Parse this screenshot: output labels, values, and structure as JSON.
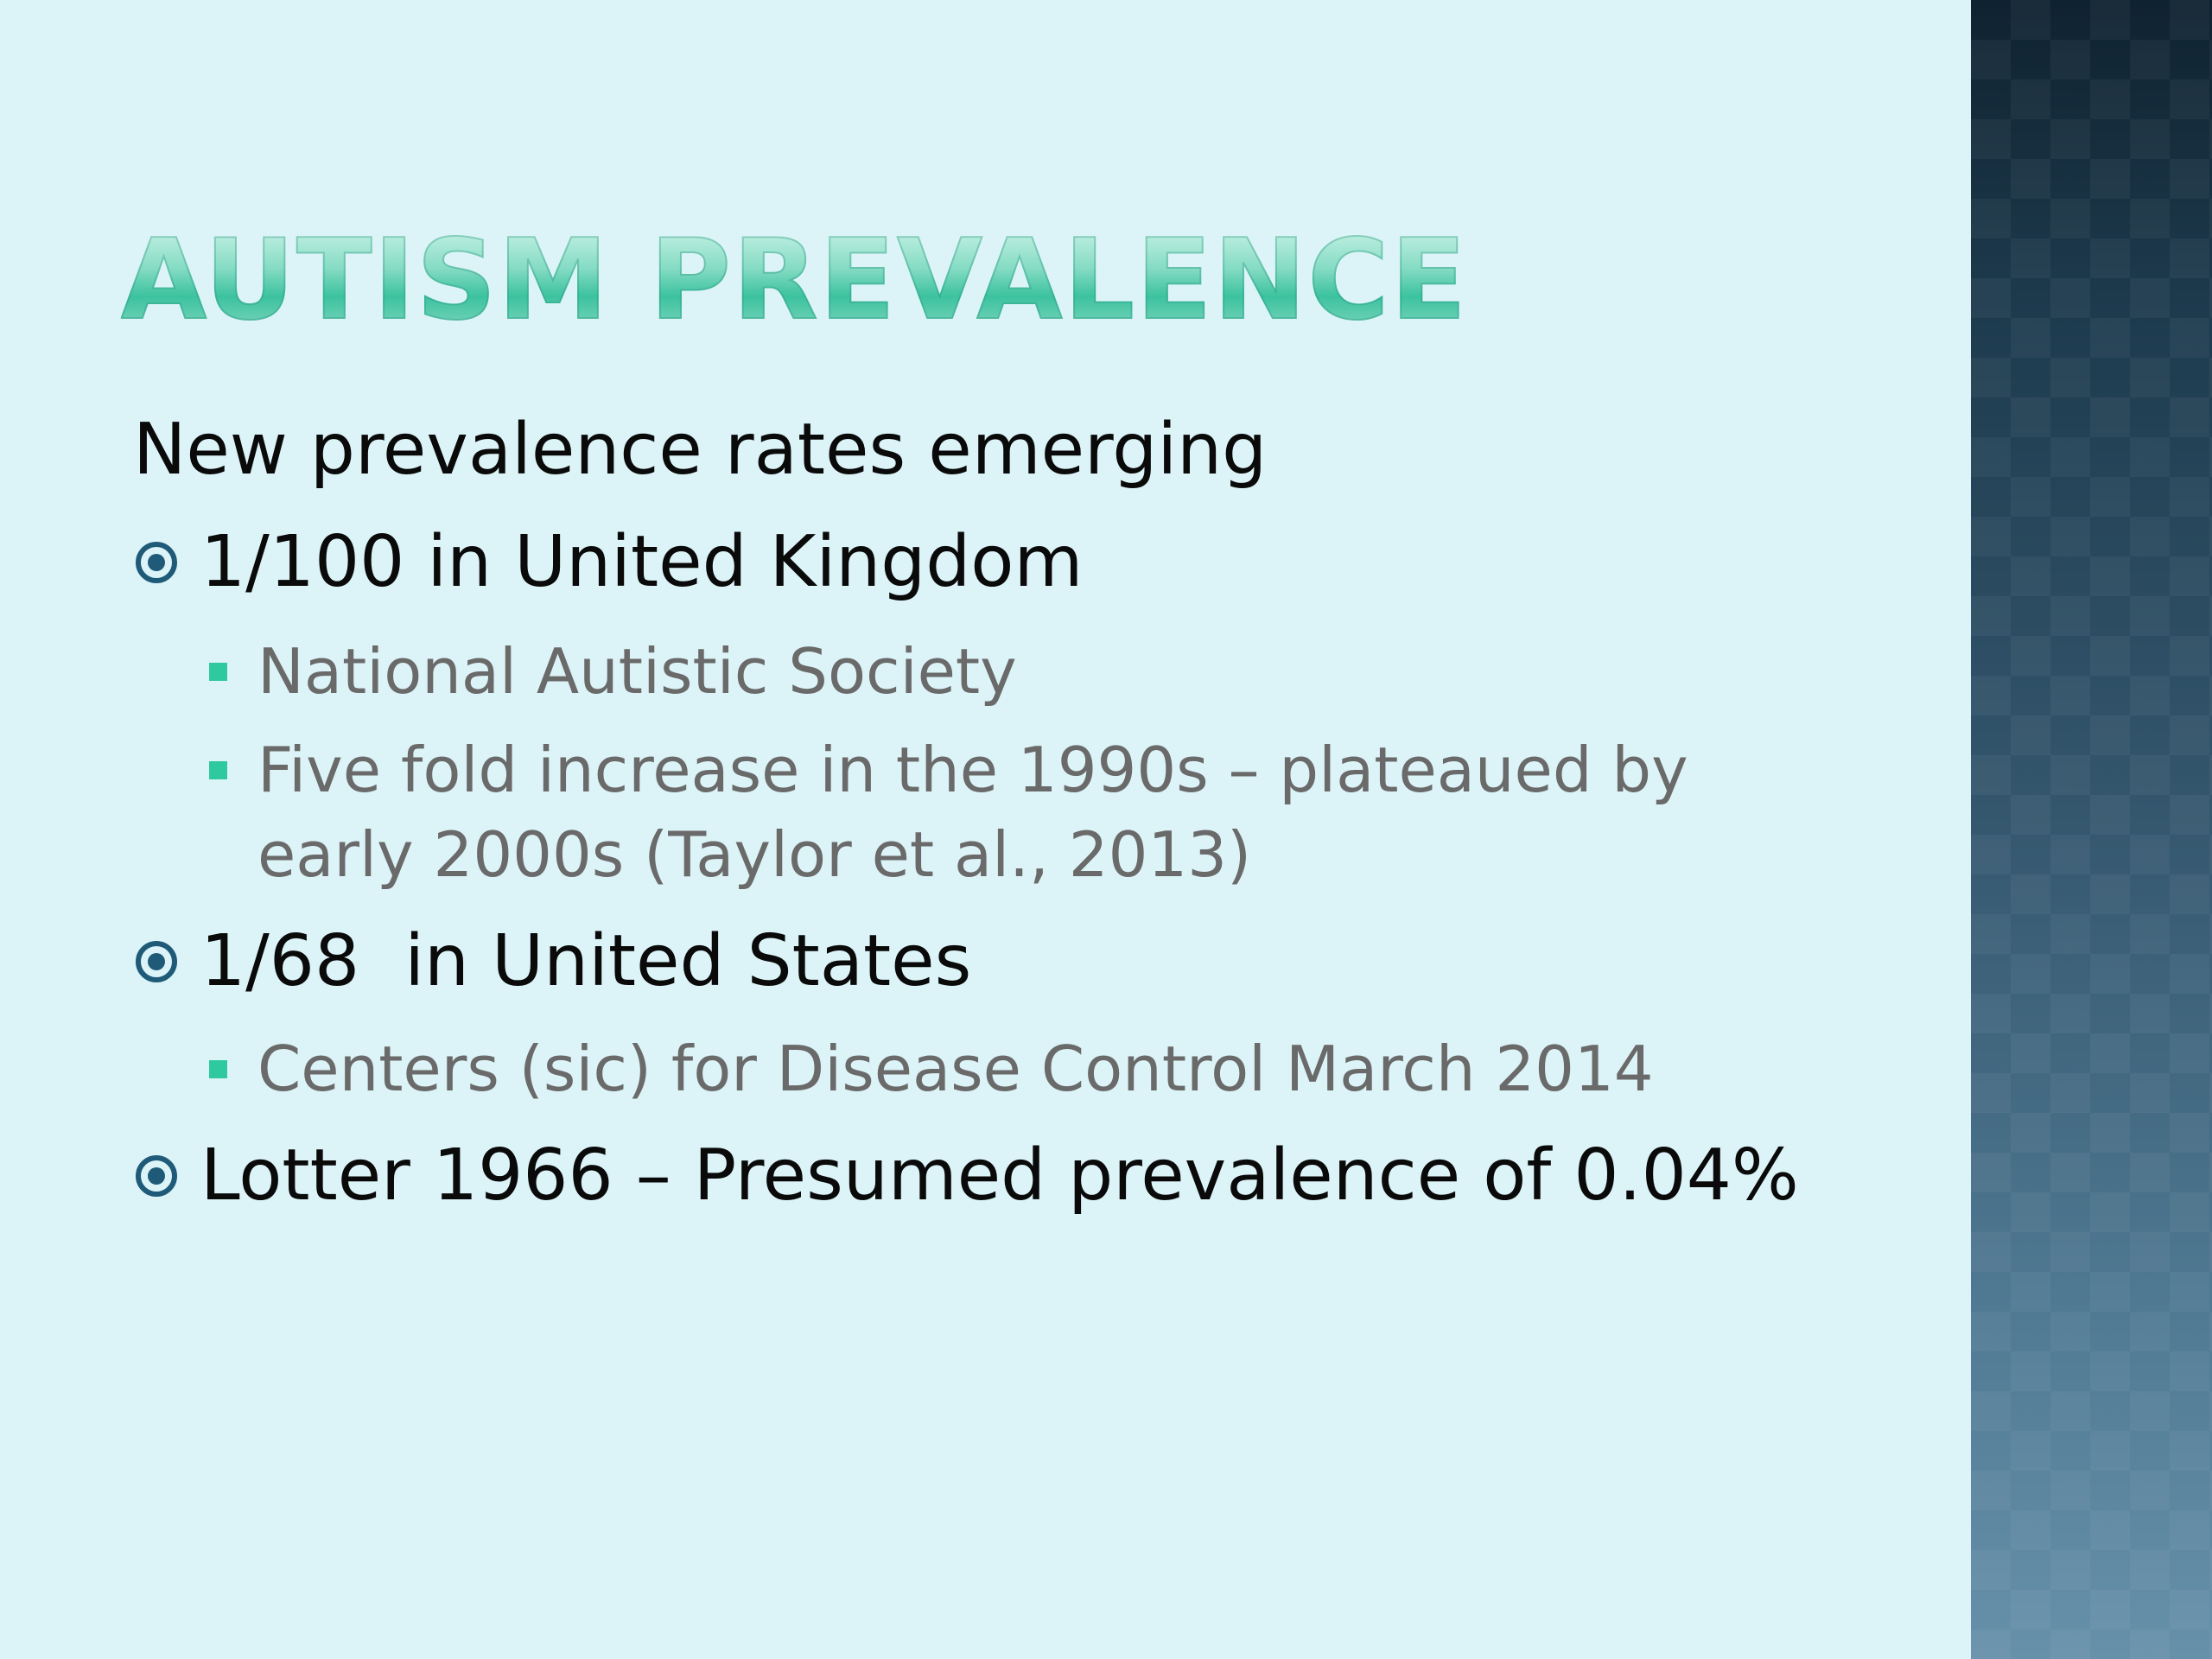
{
  "slide": {
    "title": "Autism prevalence",
    "intro": "New prevalence rates emerging",
    "items": [
      {
        "text": "1/100 in United Kingdom"
      },
      {
        "text": "National Autistic Society"
      },
      {
        "text": "Five fold increase in the 1990s – plateaued by",
        "text2": "early 2000s (Taylor et al., 2013)"
      },
      {
        "text": "1/68  in United States"
      },
      {
        "text": "Centers (sic) for Disease Control March 2014"
      },
      {
        "text": "Lotter 1966 – Presumed prevalence of 0.04%"
      }
    ]
  },
  "colors": {
    "background": "#dcf4f8",
    "title_gradient": "#3cc29f",
    "level1_text": "#0a0a0a",
    "level2_text": "#6a6a6a",
    "level1_bullet": "#1f5a78",
    "level2_bullet": "#2fc9a0",
    "side_panel": "#2e4c60"
  },
  "icons": {
    "level1_bullet": "ring-dot-bullet-icon",
    "level2_bullet": "square-bullet-icon"
  }
}
